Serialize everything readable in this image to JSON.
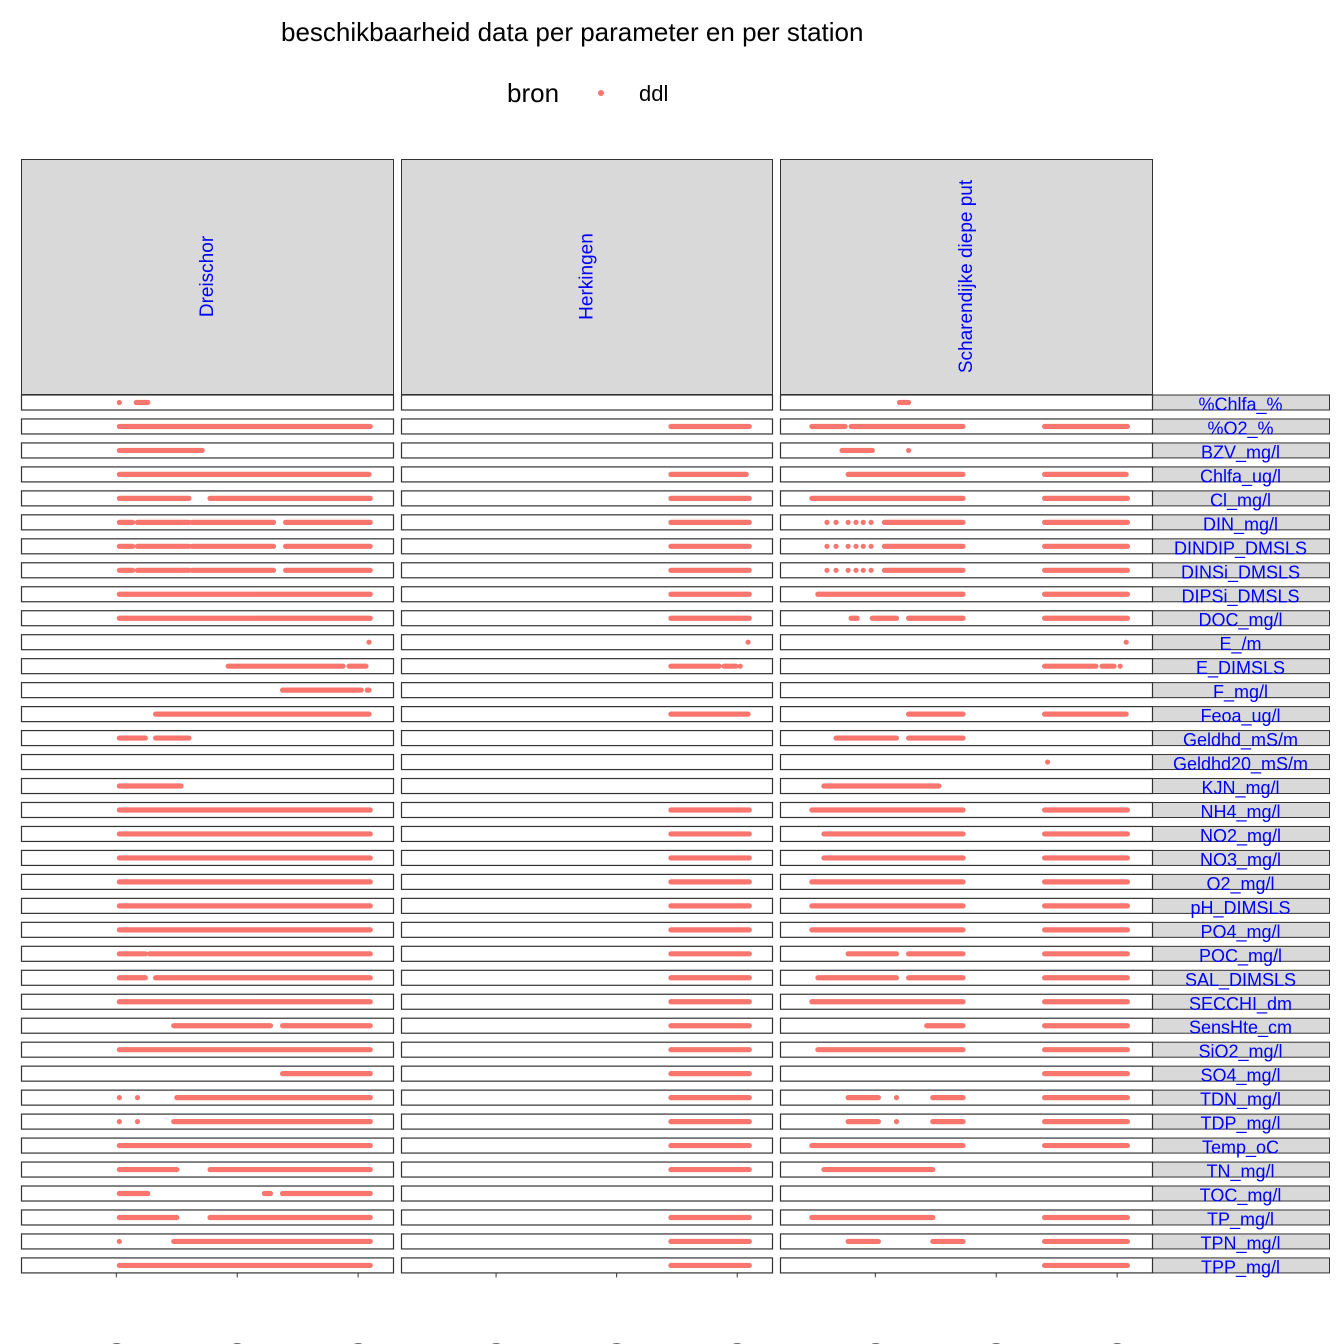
{
  "title": "beschikbaarheid data per parameter en per station",
  "legend": {
    "title": "bron",
    "label": "ddl",
    "color": "#f8766d"
  },
  "chart_data": {
    "type": "scatter",
    "title": "beschikbaarheid data per parameter en per station",
    "xlim": [
      1967,
      2023
    ],
    "x_ticks": [
      1980,
      2000,
      2020
    ],
    "stations": [
      "Dreischor",
      "Herkingen",
      "Scharendijke diepe put"
    ],
    "parameters": [
      "%Chlfa_%",
      "%O2_%",
      "BZV_mg/l",
      "Chlfa_ug/l",
      "Cl_mg/l",
      "DIN_mg/l",
      "DINDIP_DMSLS",
      "DINSi_DMSLS",
      "DIPSi_DMSLS",
      "DOC_mg/l",
      "E_/m",
      "E_DIMSLS",
      "F_mg/l",
      "Feoa_ug/l",
      "Geldhd_mS/m",
      "Geldhd20_mS/m",
      "KJN_mg/l",
      "NH4_mg/l",
      "NO2_mg/l",
      "NO3_mg/l",
      "O2_mg/l",
      "pH_DIMSLS",
      "PO4_mg/l",
      "POC_mg/l",
      "SAL_DIMSLS",
      "SECCHI_dm",
      "SensHte_cm",
      "SiO2_mg/l",
      "SO4_mg/l",
      "TDN_mg/l",
      "TDP_mg/l",
      "Temp_oC",
      "TN_mg/l",
      "TOC_mg/l",
      "TP_mg/l",
      "TPN_mg/l",
      "TPP_mg/l"
    ],
    "series": [
      {
        "name": "ddl",
        "color": "#f8766d",
        "station_rows": [
          [
            [
              [
                1980.5,
                1980.5
              ],
              [
                1983.3,
                1985.2
              ]
            ],
            [
              [
                1980.5,
                2022
              ]
            ],
            [
              [
                1980.5,
                1994.2
              ]
            ],
            [
              [
                1980.5,
                2021.8
              ]
            ],
            [
              [
                1980.5,
                1992
              ],
              [
                1995.5,
                2022
              ]
            ],
            [
              [
                1980.5,
                1982.7
              ],
              [
                1983.5,
                1992
              ],
              [
                1992.5,
                2006
              ],
              [
                2008,
                2022
              ]
            ],
            [
              [
                1980.5,
                1982.7
              ],
              [
                1983.5,
                1992
              ],
              [
                1992.5,
                2006
              ],
              [
                2008,
                2022
              ]
            ],
            [
              [
                1980.5,
                1982.7
              ],
              [
                1983.5,
                1992
              ],
              [
                1992.5,
                2006
              ],
              [
                2008,
                2022
              ]
            ],
            [
              [
                1980.5,
                2022
              ]
            ],
            [
              [
                1980.5,
                2022
              ]
            ],
            [
              [
                2021.8,
                2021.8
              ]
            ],
            [
              [
                1998.5,
                2017.5
              ],
              [
                2018.5,
                2021.3
              ]
            ],
            [
              [
                2007.5,
                2020.5
              ],
              [
                2021.5,
                2021.8
              ]
            ],
            [
              [
                1986.5,
                2021.8
              ]
            ],
            [
              [
                1980.5,
                1984.8
              ],
              [
                1986.5,
                1992
              ]
            ],
            [],
            [
              [
                1980.5,
                1990.7
              ]
            ],
            [
              [
                1980.5,
                2022
              ]
            ],
            [
              [
                1980.5,
                2022
              ]
            ],
            [
              [
                1980.5,
                2022
              ]
            ],
            [
              [
                1980.5,
                2022
              ]
            ],
            [
              [
                1980.5,
                2022
              ]
            ],
            [
              [
                1980.5,
                2022
              ]
            ],
            [
              [
                1980.5,
                1984.8
              ],
              [
                1985.5,
                2022
              ]
            ],
            [
              [
                1980.5,
                1984.8
              ],
              [
                1986.5,
                2022
              ]
            ],
            [
              [
                1980.5,
                2022
              ]
            ],
            [
              [
                1989.5,
                2005.5
              ],
              [
                2007.5,
                2022
              ]
            ],
            [
              [
                1980.5,
                2022
              ]
            ],
            [
              [
                2007.5,
                2022
              ]
            ],
            [
              [
                1980.5,
                1980.5
              ],
              [
                1983.5,
                1983.5
              ],
              [
                1990,
                2022
              ]
            ],
            [
              [
                1980.5,
                1980.5
              ],
              [
                1983.5,
                1983.5
              ],
              [
                1989.5,
                2022
              ]
            ],
            [
              [
                1980.5,
                2022
              ]
            ],
            [
              [
                1980.5,
                1990
              ],
              [
                1995.5,
                2022
              ]
            ],
            [
              [
                1980.5,
                1985.2
              ],
              [
                2004.5,
                2005.5
              ],
              [
                2007.5,
                2022
              ]
            ],
            [
              [
                1980.5,
                1990
              ],
              [
                1995.5,
                2022
              ]
            ],
            [
              [
                1980.5,
                1980.5
              ],
              [
                1989.5,
                2022
              ]
            ],
            [
              [
                1980.5,
                2022
              ]
            ]
          ],
          [
            [],
            [
              [
                2009,
                2022
              ]
            ],
            [],
            [
              [
                2009,
                2021.5
              ]
            ],
            [
              [
                2009,
                2022
              ]
            ],
            [
              [
                2009,
                2022
              ]
            ],
            [
              [
                2009,
                2022
              ]
            ],
            [
              [
                2009,
                2022
              ]
            ],
            [
              [
                2009,
                2022
              ]
            ],
            [
              [
                2009,
                2022
              ]
            ],
            [
              [
                2021.8,
                2021.8
              ]
            ],
            [
              [
                2009,
                2017
              ],
              [
                2017.8,
                2019.8
              ],
              [
                2020.5,
                2020.5
              ]
            ],
            [],
            [
              [
                2009,
                2021.8
              ]
            ],
            [],
            [],
            [],
            [
              [
                2009,
                2022
              ]
            ],
            [
              [
                2009,
                2022
              ]
            ],
            [
              [
                2009,
                2022
              ]
            ],
            [
              [
                2009,
                2022
              ]
            ],
            [
              [
                2009,
                2022
              ]
            ],
            [
              [
                2009,
                2022
              ]
            ],
            [
              [
                2009,
                2022
              ]
            ],
            [
              [
                2009,
                2022
              ]
            ],
            [
              [
                2009,
                2022
              ]
            ],
            [
              [
                2009,
                2022
              ]
            ],
            [
              [
                2009,
                2022
              ]
            ],
            [
              [
                2009,
                2022
              ]
            ],
            [
              [
                2009,
                2022
              ]
            ],
            [
              [
                2009,
                2022
              ]
            ],
            [
              [
                2009,
                2022
              ]
            ],
            [
              [
                2009,
                2022
              ]
            ],
            [],
            [
              [
                2009,
                2022
              ]
            ],
            [
              [
                2009,
                2022
              ]
            ],
            [
              [
                2009,
                2022
              ]
            ]
          ],
          [
            [
              [
                1984,
                1985.5
              ]
            ],
            [
              [
                1969.5,
                1975
              ],
              [
                1976,
                1994.5
              ],
              [
                2008,
                2021.7
              ]
            ],
            [
              [
                1974.5,
                1979.5
              ],
              [
                1985.5,
                1985.5
              ]
            ],
            [
              [
                1975.5,
                1994.5
              ],
              [
                2008,
                2021.5
              ]
            ],
            [
              [
                1969.5,
                1994.5
              ],
              [
                2008,
                2021.7
              ]
            ],
            [
              [
                1972,
                1972
              ],
              [
                1973.5,
                1973.5
              ],
              [
                1975.5,
                1975.5
              ],
              [
                1976.8,
                1976.8
              ],
              [
                1978,
                1978
              ],
              [
                1979.3,
                1979.3
              ],
              [
                1981.5,
                1994.5
              ],
              [
                2008,
                2021.7
              ]
            ],
            [
              [
                1972,
                1972
              ],
              [
                1973.5,
                1973.5
              ],
              [
                1975.5,
                1975.5
              ],
              [
                1976.8,
                1976.8
              ],
              [
                1978,
                1978
              ],
              [
                1979.3,
                1979.3
              ],
              [
                1981.5,
                1994.5
              ],
              [
                2008,
                2021.7
              ]
            ],
            [
              [
                1972,
                1972
              ],
              [
                1973.5,
                1973.5
              ],
              [
                1975.5,
                1975.5
              ],
              [
                1976.8,
                1976.8
              ],
              [
                1978,
                1978
              ],
              [
                1979.3,
                1979.3
              ],
              [
                1981.5,
                1994.5
              ],
              [
                2008,
                2021.7
              ]
            ],
            [
              [
                1970.5,
                1994.5
              ],
              [
                2008,
                2021.7
              ]
            ],
            [
              [
                1976,
                1977
              ],
              [
                1979.5,
                1983.5
              ],
              [
                1985.5,
                1994.5
              ],
              [
                2008,
                2021.7
              ]
            ],
            [
              [
                2021.5,
                2021.5
              ]
            ],
            [
              [
                2008,
                2016.5
              ],
              [
                2017.5,
                2019.5
              ],
              [
                2020.5,
                2020.5
              ]
            ],
            [],
            [
              [
                1985.5,
                1994.5
              ],
              [
                2008,
                2021.5
              ]
            ],
            [
              [
                1973.5,
                1983.5
              ],
              [
                1985.5,
                1994.5
              ]
            ],
            [
              [
                2008.5,
                2008.5
              ]
            ],
            [
              [
                1971.5,
                1990.5
              ]
            ],
            [
              [
                1969.5,
                1994.5
              ],
              [
                2008,
                2021.7
              ]
            ],
            [
              [
                1971.5,
                1994.5
              ],
              [
                2008,
                2021.7
              ]
            ],
            [
              [
                1971.5,
                1994.5
              ],
              [
                2008,
                2021.7
              ]
            ],
            [
              [
                1969.5,
                1994.5
              ],
              [
                2008,
                2021.7
              ]
            ],
            [
              [
                1969.5,
                1994.5
              ],
              [
                2008,
                2021.7
              ]
            ],
            [
              [
                1969.5,
                1994.5
              ],
              [
                2008,
                2021.7
              ]
            ],
            [
              [
                1975.5,
                1983.5
              ],
              [
                1985.5,
                1994.5
              ],
              [
                2008,
                2021.7
              ]
            ],
            [
              [
                1970.5,
                1983.5
              ],
              [
                1985.5,
                1994.5
              ],
              [
                2008,
                2021.7
              ]
            ],
            [
              [
                1969.5,
                1994.5
              ],
              [
                2008,
                2021.7
              ]
            ],
            [
              [
                1988.5,
                1994.5
              ],
              [
                2008,
                2021.7
              ]
            ],
            [
              [
                1970.5,
                1994.5
              ],
              [
                2008,
                2021.7
              ]
            ],
            [
              [
                2008,
                2021.7
              ]
            ],
            [
              [
                1975.5,
                1980.5
              ],
              [
                1983.5,
                1983.5
              ],
              [
                1989.5,
                1994.5
              ],
              [
                2008,
                2021.7
              ]
            ],
            [
              [
                1975.5,
                1980.5
              ],
              [
                1983.5,
                1983.5
              ],
              [
                1989.5,
                1994.5
              ],
              [
                2008,
                2021.7
              ]
            ],
            [
              [
                1969.5,
                1994.5
              ],
              [
                2008,
                2021.7
              ]
            ],
            [
              [
                1971.5,
                1989.5
              ]
            ],
            [],
            [
              [
                1969.5,
                1989.5
              ],
              [
                2008,
                2021.7
              ]
            ],
            [
              [
                1975.5,
                1980.5
              ],
              [
                1989.5,
                1994.5
              ],
              [
                2008,
                2021.7
              ]
            ],
            [
              [
                2008,
                2021.7
              ]
            ]
          ]
        ]
      }
    ]
  }
}
